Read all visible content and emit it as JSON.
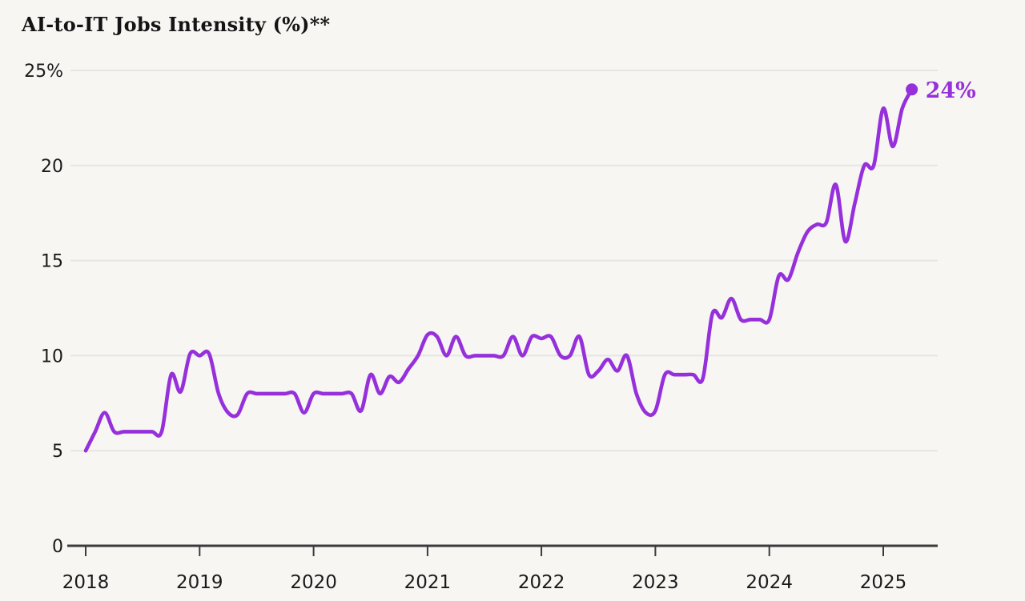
{
  "page": {
    "background_color": "#F7F6F3"
  },
  "chart_data": {
    "type": "line",
    "title": "AI-to-IT Jobs Intensity (%)**",
    "grid": "horizontal",
    "legend": "none",
    "x_start": "2018-01",
    "x_end": "2025-04",
    "x_tick_labels": [
      "2018",
      "2019",
      "2020",
      "2021",
      "2022",
      "2023",
      "2024",
      "2025"
    ],
    "y_tick_labels": [
      "25%",
      "20",
      "15",
      "10",
      "5",
      "0"
    ],
    "y_tick_values": [
      25,
      20,
      15,
      10,
      5,
      0
    ],
    "ylim": [
      0,
      25
    ],
    "end_point_label": "24%",
    "series": [
      {
        "name": "AI-to-IT Jobs Intensity (%)",
        "cadence": "monthly",
        "color": "#9630DB",
        "values": [
          5,
          6,
          7,
          6,
          6,
          6,
          6,
          6,
          6,
          9,
          8.1,
          10.1,
          10,
          10.1,
          8,
          7,
          6.9,
          8,
          8,
          8,
          8,
          8,
          8,
          7,
          8,
          8,
          8,
          8,
          8,
          7.1,
          9,
          8,
          8.9,
          8.6,
          9.3,
          10,
          11.1,
          11,
          10,
          11,
          10,
          10,
          10,
          10,
          10,
          11,
          10,
          11,
          10.9,
          11,
          10,
          10,
          11,
          9,
          9.2,
          9.8,
          9.2,
          10,
          8,
          7,
          7.1,
          9,
          9,
          9,
          9,
          8.8,
          12.2,
          12,
          13,
          11.9,
          11.9,
          11.9,
          11.9,
          14.2,
          14,
          15.4,
          16.5,
          16.9,
          17,
          19,
          16,
          18,
          20,
          20,
          23,
          21,
          23,
          24
        ]
      }
    ],
    "colors": {
      "line": "#9630DB",
      "end_dot": "#9630DB",
      "end_label": "#9630DB",
      "gridline": "#E6E5E1",
      "axis": "#3B3B3B",
      "tick_text": "#1a1a1a",
      "title_text": "#141414",
      "background": "#F7F6F3"
    }
  }
}
